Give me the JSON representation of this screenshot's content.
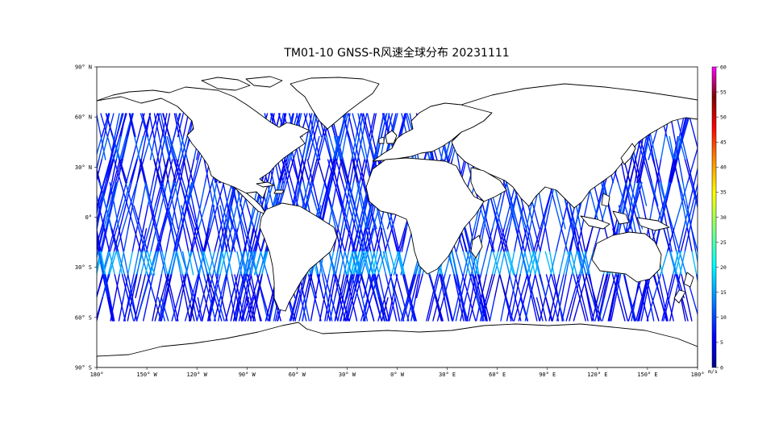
{
  "title": "TM01-10 GNSS-R风速全球分布 20231111",
  "map": {
    "projection": "equirectangular",
    "extent": {
      "lon": [
        -180,
        180
      ],
      "lat": [
        -90,
        90
      ]
    },
    "lon_ticks": [
      {
        "value": -180,
        "label": "180°"
      },
      {
        "value": -150,
        "label": "150° W"
      },
      {
        "value": -120,
        "label": "120° W"
      },
      {
        "value": -90,
        "label": "90° W"
      },
      {
        "value": -60,
        "label": "60° W"
      },
      {
        "value": -30,
        "label": "30° W"
      },
      {
        "value": 0,
        "label": "0° W"
      },
      {
        "value": 30,
        "label": "30° E"
      },
      {
        "value": 60,
        "label": "60° E"
      },
      {
        "value": 90,
        "label": "90° E"
      },
      {
        "value": 120,
        "label": "120° E"
      },
      {
        "value": 150,
        "label": "150° E"
      },
      {
        "value": 180,
        "label": "180°"
      }
    ],
    "lat_ticks": [
      {
        "value": 90,
        "label": "90° N"
      },
      {
        "value": 60,
        "label": "60° N"
      },
      {
        "value": 30,
        "label": "30° N"
      },
      {
        "value": 0,
        "label": "0°"
      },
      {
        "value": -30,
        "label": "30° S"
      },
      {
        "value": -60,
        "label": "60° S"
      },
      {
        "value": -90,
        "label": "90° S"
      }
    ],
    "coverage_lat": [
      -62,
      62
    ],
    "coastline_color": "#000000",
    "land_color": "#ffffff"
  },
  "colorbar": {
    "min": 0,
    "max": 60,
    "ticks": [
      0,
      5,
      10,
      15,
      20,
      25,
      30,
      35,
      40,
      45,
      50,
      55,
      60
    ],
    "unit": "m/s",
    "colormap": "jet",
    "colors": [
      "#00008f",
      "#0000ff",
      "#0080ff",
      "#00ffff",
      "#80ff80",
      "#ffff00",
      "#ff8000",
      "#ff0000",
      "#800000",
      "#ff00ff"
    ]
  },
  "chart_data": {
    "type": "heatmap",
    "title": "TM01-10 GNSS-R风速全球分布 20231111",
    "quantity": "wind speed",
    "unit": "m/s",
    "value_range": [
      0,
      60
    ],
    "xlim": [
      -180,
      180
    ],
    "ylim": [
      -90,
      90
    ],
    "wind_zones": [
      {
        "lat": [
          45,
          62
        ],
        "speed": 13
      },
      {
        "lat": [
          25,
          45
        ],
        "speed": 7
      },
      {
        "lat": [
          10,
          25
        ],
        "speed": 9
      },
      {
        "lat": [
          -10,
          10
        ],
        "speed": 6
      },
      {
        "lat": [
          -30,
          -10
        ],
        "speed": 9
      },
      {
        "lat": [
          -45,
          -30
        ],
        "speed": 7
      },
      {
        "lat": [
          -62,
          -45
        ],
        "speed": 14
      }
    ]
  }
}
